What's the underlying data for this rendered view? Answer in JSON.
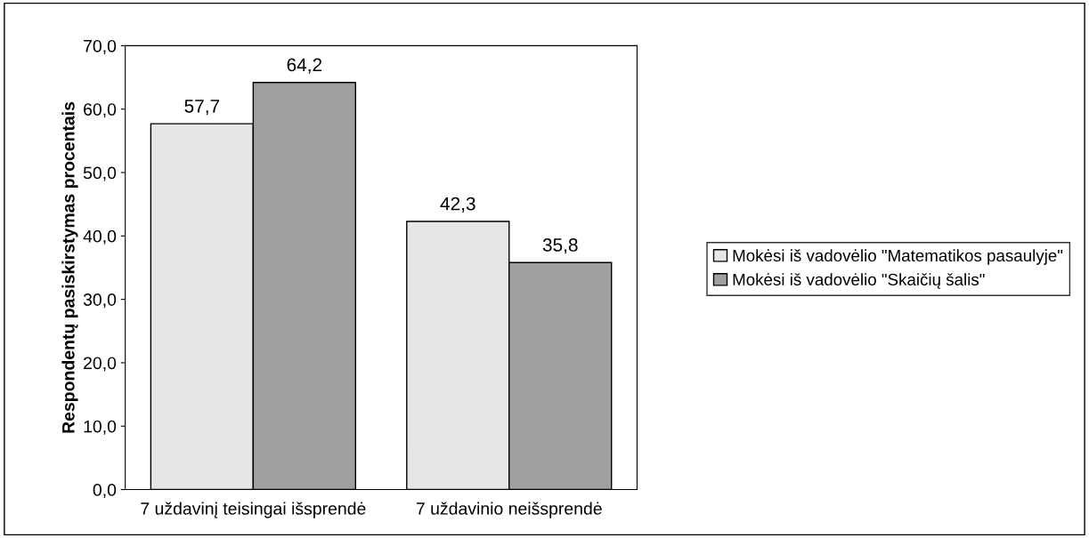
{
  "chart_data": {
    "type": "bar",
    "ylabel": "Respondentų pasiskirstymas procentais",
    "categories": [
      "7 uždavinį teisingai išsprendė",
      "7 uždavinio neišsprendė"
    ],
    "series": [
      {
        "name": "Mokėsi iš vadovėlio \"Matematikos pasaulyje\"",
        "color": "#e6e6e6",
        "values": [
          57.7,
          42.3
        ],
        "value_labels": [
          "57,7",
          "42,3"
        ]
      },
      {
        "name": "Mokėsi iš vadovėlio \"Skaičių šalis\"",
        "color": "#a0a0a0",
        "values": [
          64.2,
          35.8
        ],
        "value_labels": [
          "64,2",
          "35,8"
        ]
      }
    ],
    "ylim": [
      0,
      70
    ],
    "yticks": [
      {
        "value": 0,
        "label": "0,0"
      },
      {
        "value": 10,
        "label": "10,0"
      },
      {
        "value": 20,
        "label": "20,0"
      },
      {
        "value": 30,
        "label": "30,0"
      },
      {
        "value": 40,
        "label": "40,0"
      },
      {
        "value": 50,
        "label": "50,0"
      },
      {
        "value": 60,
        "label": "60,0"
      },
      {
        "value": 70,
        "label": "70,0"
      }
    ],
    "grid": false,
    "legend": "right"
  }
}
